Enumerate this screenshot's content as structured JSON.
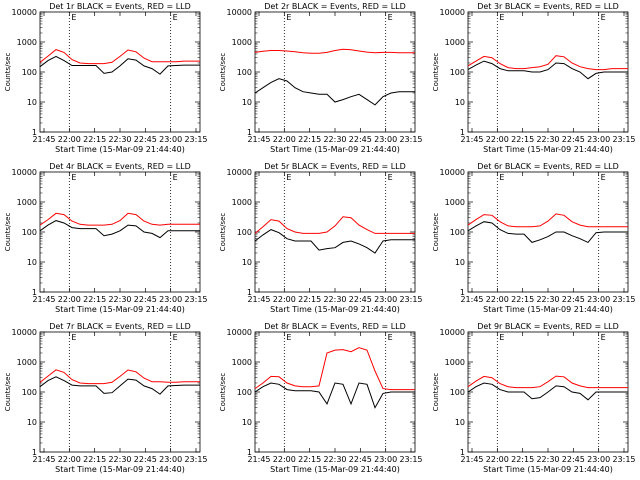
{
  "chart_data": [
    {
      "type": "line",
      "title": "Det 1r BLACK = Events, RED = LLD",
      "xlabel": "Start Time (15-Mar-09 21:44:40)",
      "ylabel": "Counts/sec",
      "yscale": "log",
      "ylim": [
        1,
        10000
      ],
      "x_ticks": [
        "21:45",
        "22:00",
        "22:15",
        "22:30",
        "22:45",
        "23:00",
        "23:15"
      ],
      "y_ticks": [
        "1",
        "10",
        "100",
        "1000",
        "10000"
      ],
      "vlines": [
        "22:00",
        "23:00"
      ],
      "marker": "E",
      "series": [
        {
          "color": "#000000",
          "x": [
            0,
            5,
            10,
            15,
            20,
            25,
            30,
            35,
            40,
            45,
            50,
            55,
            60,
            65,
            70,
            75,
            80,
            85,
            90,
            95,
            100
          ],
          "y": [
            150,
            240,
            330,
            240,
            165,
            165,
            165,
            165,
            90,
            100,
            160,
            275,
            250,
            160,
            130,
            85,
            160,
            165,
            170,
            170,
            170
          ]
        },
        {
          "color": "#ff0000",
          "x": [
            0,
            5,
            10,
            15,
            20,
            25,
            30,
            35,
            40,
            45,
            50,
            55,
            60,
            65,
            70,
            75,
            80,
            85,
            90,
            95,
            100
          ],
          "y": [
            210,
            340,
            560,
            450,
            260,
            200,
            190,
            190,
            190,
            210,
            330,
            540,
            470,
            290,
            220,
            220,
            220,
            220,
            230,
            230,
            230
          ]
        }
      ]
    },
    {
      "type": "line",
      "title": "Det 2r BLACK = Events, RED = LLD",
      "xlabel": "Start Time (15-Mar-09 21:44:40)",
      "ylabel": "Counts/sec",
      "yscale": "log",
      "ylim": [
        1,
        10000
      ],
      "x_ticks": [
        "21:45",
        "22:00",
        "22:15",
        "22:30",
        "22:45",
        "23:00",
        "23:15"
      ],
      "y_ticks": [
        "1",
        "10",
        "100",
        "1000",
        "10000"
      ],
      "vlines": [
        "22:00",
        "23:00"
      ],
      "marker": "E",
      "series": [
        {
          "color": "#000000",
          "x": [
            0,
            5,
            10,
            15,
            20,
            25,
            30,
            35,
            40,
            45,
            50,
            55,
            60,
            65,
            70,
            75,
            80,
            85,
            90,
            95,
            100
          ],
          "y": [
            20,
            30,
            45,
            60,
            50,
            30,
            22,
            20,
            18,
            18,
            10,
            12,
            15,
            18,
            12,
            8,
            15,
            20,
            22,
            22,
            22
          ]
        },
        {
          "color": "#ff0000",
          "x": [
            0,
            5,
            10,
            15,
            20,
            25,
            30,
            35,
            40,
            45,
            50,
            55,
            60,
            65,
            70,
            75,
            80,
            85,
            90,
            95,
            100
          ],
          "y": [
            450,
            490,
            520,
            520,
            500,
            470,
            440,
            420,
            420,
            450,
            520,
            570,
            550,
            500,
            460,
            440,
            450,
            450,
            440,
            440,
            440
          ]
        }
      ]
    },
    {
      "type": "line",
      "title": "Det 3r BLACK = Events, RED = LLD",
      "xlabel": "Start Time (15-Mar-09 21:44:40)",
      "ylabel": "Counts/sec",
      "yscale": "log",
      "ylim": [
        1,
        10000
      ],
      "x_ticks": [
        "21:45",
        "22:00",
        "22:15",
        "22:30",
        "22:45",
        "23:00",
        "23:15"
      ],
      "y_ticks": [
        "1",
        "10",
        "100",
        "1000",
        "10000"
      ],
      "vlines": [
        "22:00",
        "23:00"
      ],
      "marker": "E",
      "series": [
        {
          "color": "#000000",
          "x": [
            0,
            5,
            10,
            15,
            20,
            25,
            30,
            35,
            40,
            45,
            50,
            55,
            60,
            65,
            70,
            75,
            80,
            85,
            90,
            95,
            100
          ],
          "y": [
            120,
            170,
            230,
            190,
            130,
            110,
            110,
            110,
            100,
            100,
            120,
            200,
            190,
            130,
            100,
            60,
            90,
            100,
            100,
            100,
            100
          ]
        },
        {
          "color": "#ff0000",
          "x": [
            0,
            5,
            10,
            15,
            20,
            25,
            30,
            35,
            40,
            45,
            50,
            55,
            60,
            65,
            70,
            75,
            80,
            85,
            90,
            95,
            100
          ],
          "y": [
            160,
            230,
            330,
            300,
            190,
            140,
            130,
            130,
            140,
            150,
            180,
            350,
            320,
            200,
            150,
            130,
            120,
            120,
            130,
            130,
            130
          ]
        }
      ]
    },
    {
      "type": "line",
      "title": "Det 4r BLACK = Events, RED = LLD",
      "xlabel": "Start Time (15-Mar-09 21:44:40)",
      "ylabel": "Counts/sec",
      "yscale": "log",
      "ylim": [
        1,
        10000
      ],
      "x_ticks": [
        "21:45",
        "22:00",
        "22:15",
        "22:30",
        "22:45",
        "23:00",
        "23:15"
      ],
      "y_ticks": [
        "1",
        "10",
        "100",
        "1000",
        "10000"
      ],
      "vlines": [
        "22:00",
        "23:00"
      ],
      "marker": "E",
      "series": [
        {
          "color": "#000000",
          "x": [
            0,
            5,
            10,
            15,
            20,
            25,
            30,
            35,
            40,
            45,
            50,
            55,
            60,
            65,
            70,
            75,
            80,
            85,
            90,
            95,
            100
          ],
          "y": [
            110,
            170,
            240,
            200,
            140,
            130,
            130,
            130,
            75,
            85,
            110,
            170,
            160,
            100,
            90,
            65,
            110,
            110,
            110,
            110,
            110
          ]
        },
        {
          "color": "#ff0000",
          "x": [
            0,
            5,
            10,
            15,
            20,
            25,
            30,
            35,
            40,
            45,
            50,
            55,
            60,
            65,
            70,
            75,
            80,
            85,
            90,
            95,
            100
          ],
          "y": [
            170,
            260,
            420,
            380,
            230,
            180,
            170,
            170,
            170,
            180,
            240,
            420,
            380,
            230,
            180,
            170,
            180,
            180,
            180,
            180,
            180
          ]
        }
      ]
    },
    {
      "type": "line",
      "title": "Det 5r BLACK = Events, RED = LLD",
      "xlabel": "Start Time (15-Mar-09 21:44:40)",
      "ylabel": "Counts/sec",
      "yscale": "log",
      "ylim": [
        1,
        10000
      ],
      "x_ticks": [
        "21:45",
        "22:00",
        "22:15",
        "22:30",
        "22:45",
        "23:00",
        "23:15"
      ],
      "y_ticks": [
        "1",
        "10",
        "100",
        "1000",
        "10000"
      ],
      "vlines": [
        "22:00",
        "23:00"
      ],
      "marker": "E",
      "series": [
        {
          "color": "#000000",
          "x": [
            0,
            5,
            10,
            15,
            20,
            25,
            30,
            35,
            40,
            45,
            50,
            55,
            60,
            65,
            70,
            75,
            80,
            85,
            90,
            95,
            100
          ],
          "y": [
            50,
            80,
            120,
            95,
            60,
            50,
            50,
            50,
            25,
            28,
            30,
            45,
            50,
            40,
            30,
            20,
            50,
            55,
            55,
            55,
            55
          ]
        },
        {
          "color": "#ff0000",
          "x": [
            0,
            5,
            10,
            15,
            20,
            25,
            30,
            35,
            40,
            45,
            50,
            55,
            60,
            65,
            70,
            75,
            80,
            85,
            90,
            95,
            100
          ],
          "y": [
            90,
            150,
            260,
            230,
            130,
            100,
            90,
            90,
            90,
            100,
            160,
            320,
            300,
            170,
            120,
            90,
            90,
            90,
            90,
            90,
            90
          ]
        }
      ]
    },
    {
      "type": "line",
      "title": "Det 6r BLACK = Events, RED = LLD",
      "xlabel": "Start Time (15-Mar-09 21:44:40)",
      "ylabel": "Counts/sec",
      "yscale": "log",
      "ylim": [
        1,
        10000
      ],
      "x_ticks": [
        "21:45",
        "22:00",
        "22:15",
        "22:30",
        "22:45",
        "23:00",
        "23:15"
      ],
      "y_ticks": [
        "1",
        "10",
        "100",
        "1000",
        "10000"
      ],
      "vlines": [
        "22:00",
        "23:00"
      ],
      "marker": "E",
      "series": [
        {
          "color": "#000000",
          "x": [
            0,
            5,
            10,
            15,
            20,
            25,
            30,
            35,
            40,
            45,
            50,
            55,
            60,
            65,
            70,
            75,
            80,
            85,
            90,
            95,
            100
          ],
          "y": [
            110,
            160,
            220,
            200,
            120,
            90,
            85,
            85,
            45,
            55,
            70,
            100,
            100,
            75,
            60,
            45,
            95,
            100,
            100,
            100,
            100
          ]
        },
        {
          "color": "#ff0000",
          "x": [
            0,
            5,
            10,
            15,
            20,
            25,
            30,
            35,
            40,
            45,
            50,
            55,
            60,
            65,
            70,
            75,
            80,
            85,
            90,
            95,
            100
          ],
          "y": [
            170,
            260,
            380,
            360,
            220,
            160,
            150,
            150,
            150,
            160,
            230,
            400,
            360,
            220,
            170,
            150,
            150,
            150,
            150,
            150,
            150
          ]
        }
      ]
    },
    {
      "type": "line",
      "title": "Det 7r BLACK = Events, RED = LLD",
      "xlabel": "Start Time (15-Mar-09 21:44:40)",
      "ylabel": "Counts/sec",
      "yscale": "log",
      "ylim": [
        1,
        10000
      ],
      "x_ticks": [
        "21:45",
        "22:00",
        "22:15",
        "22:30",
        "22:45",
        "23:00",
        "23:15"
      ],
      "y_ticks": [
        "1",
        "10",
        "100",
        "1000",
        "10000"
      ],
      "vlines": [
        "22:00",
        "23:00"
      ],
      "marker": "E",
      "series": [
        {
          "color": "#000000",
          "x": [
            0,
            5,
            10,
            15,
            20,
            25,
            30,
            35,
            40,
            45,
            50,
            55,
            60,
            65,
            70,
            75,
            80,
            85,
            90,
            95,
            100
          ],
          "y": [
            150,
            240,
            320,
            240,
            170,
            160,
            160,
            160,
            90,
            95,
            160,
            270,
            250,
            160,
            130,
            85,
            160,
            165,
            170,
            170,
            170
          ]
        },
        {
          "color": "#ff0000",
          "x": [
            0,
            5,
            10,
            15,
            20,
            25,
            30,
            35,
            40,
            45,
            50,
            55,
            60,
            65,
            70,
            75,
            80,
            85,
            90,
            95,
            100
          ],
          "y": [
            210,
            340,
            550,
            450,
            260,
            200,
            190,
            190,
            190,
            210,
            330,
            540,
            470,
            290,
            220,
            220,
            210,
            210,
            220,
            220,
            220
          ]
        }
      ]
    },
    {
      "type": "line",
      "title": "Det 8r BLACK = Events, RED = LLD",
      "xlabel": "Start Time (15-Mar-09 21:44:40)",
      "ylabel": "Counts/sec",
      "yscale": "log",
      "ylim": [
        1,
        10000
      ],
      "x_ticks": [
        "21:45",
        "22:00",
        "22:15",
        "22:30",
        "22:45",
        "23:00",
        "23:15"
      ],
      "y_ticks": [
        "1",
        "10",
        "100",
        "1000",
        "10000"
      ],
      "vlines": [
        "22:00",
        "23:00"
      ],
      "marker": "E",
      "series": [
        {
          "color": "#000000",
          "x": [
            0,
            5,
            10,
            15,
            20,
            25,
            30,
            35,
            40,
            45,
            50,
            55,
            60,
            65,
            70,
            75,
            80,
            85,
            90,
            95,
            100
          ],
          "y": [
            100,
            150,
            200,
            180,
            120,
            110,
            110,
            110,
            100,
            40,
            200,
            180,
            40,
            200,
            180,
            30,
            90,
            100,
            100,
            100,
            100
          ]
        },
        {
          "color": "#ff0000",
          "x": [
            0,
            5,
            10,
            15,
            20,
            25,
            30,
            35,
            40,
            45,
            50,
            55,
            60,
            65,
            70,
            75,
            80,
            85,
            90,
            95,
            100
          ],
          "y": [
            130,
            200,
            330,
            320,
            200,
            160,
            150,
            150,
            160,
            2000,
            2500,
            2600,
            2200,
            3000,
            2500,
            500,
            130,
            120,
            120,
            120,
            120
          ]
        }
      ]
    },
    {
      "type": "line",
      "title": "Det 9r BLACK = Events, RED = LLD",
      "xlabel": "Start Time (15-Mar-09 21:44:40)",
      "ylabel": "Counts/sec",
      "yscale": "log",
      "ylim": [
        1,
        10000
      ],
      "x_ticks": [
        "21:45",
        "22:00",
        "22:15",
        "22:30",
        "22:45",
        "23:00",
        "23:15"
      ],
      "y_ticks": [
        "1",
        "10",
        "100",
        "1000",
        "10000"
      ],
      "vlines": [
        "22:00",
        "23:00"
      ],
      "marker": "E",
      "series": [
        {
          "color": "#000000",
          "x": [
            0,
            5,
            10,
            15,
            20,
            25,
            30,
            35,
            40,
            45,
            50,
            55,
            60,
            65,
            70,
            75,
            80,
            85,
            90,
            95,
            100
          ],
          "y": [
            100,
            150,
            200,
            180,
            120,
            100,
            100,
            100,
            60,
            65,
            100,
            160,
            150,
            100,
            90,
            55,
            100,
            100,
            100,
            100,
            100
          ]
        },
        {
          "color": "#ff0000",
          "x": [
            0,
            5,
            10,
            15,
            20,
            25,
            30,
            35,
            40,
            45,
            50,
            55,
            60,
            65,
            70,
            75,
            80,
            85,
            90,
            95,
            100
          ],
          "y": [
            150,
            230,
            330,
            300,
            190,
            150,
            140,
            140,
            140,
            150,
            220,
            340,
            320,
            200,
            160,
            140,
            140,
            140,
            140,
            140,
            140
          ]
        }
      ]
    }
  ]
}
